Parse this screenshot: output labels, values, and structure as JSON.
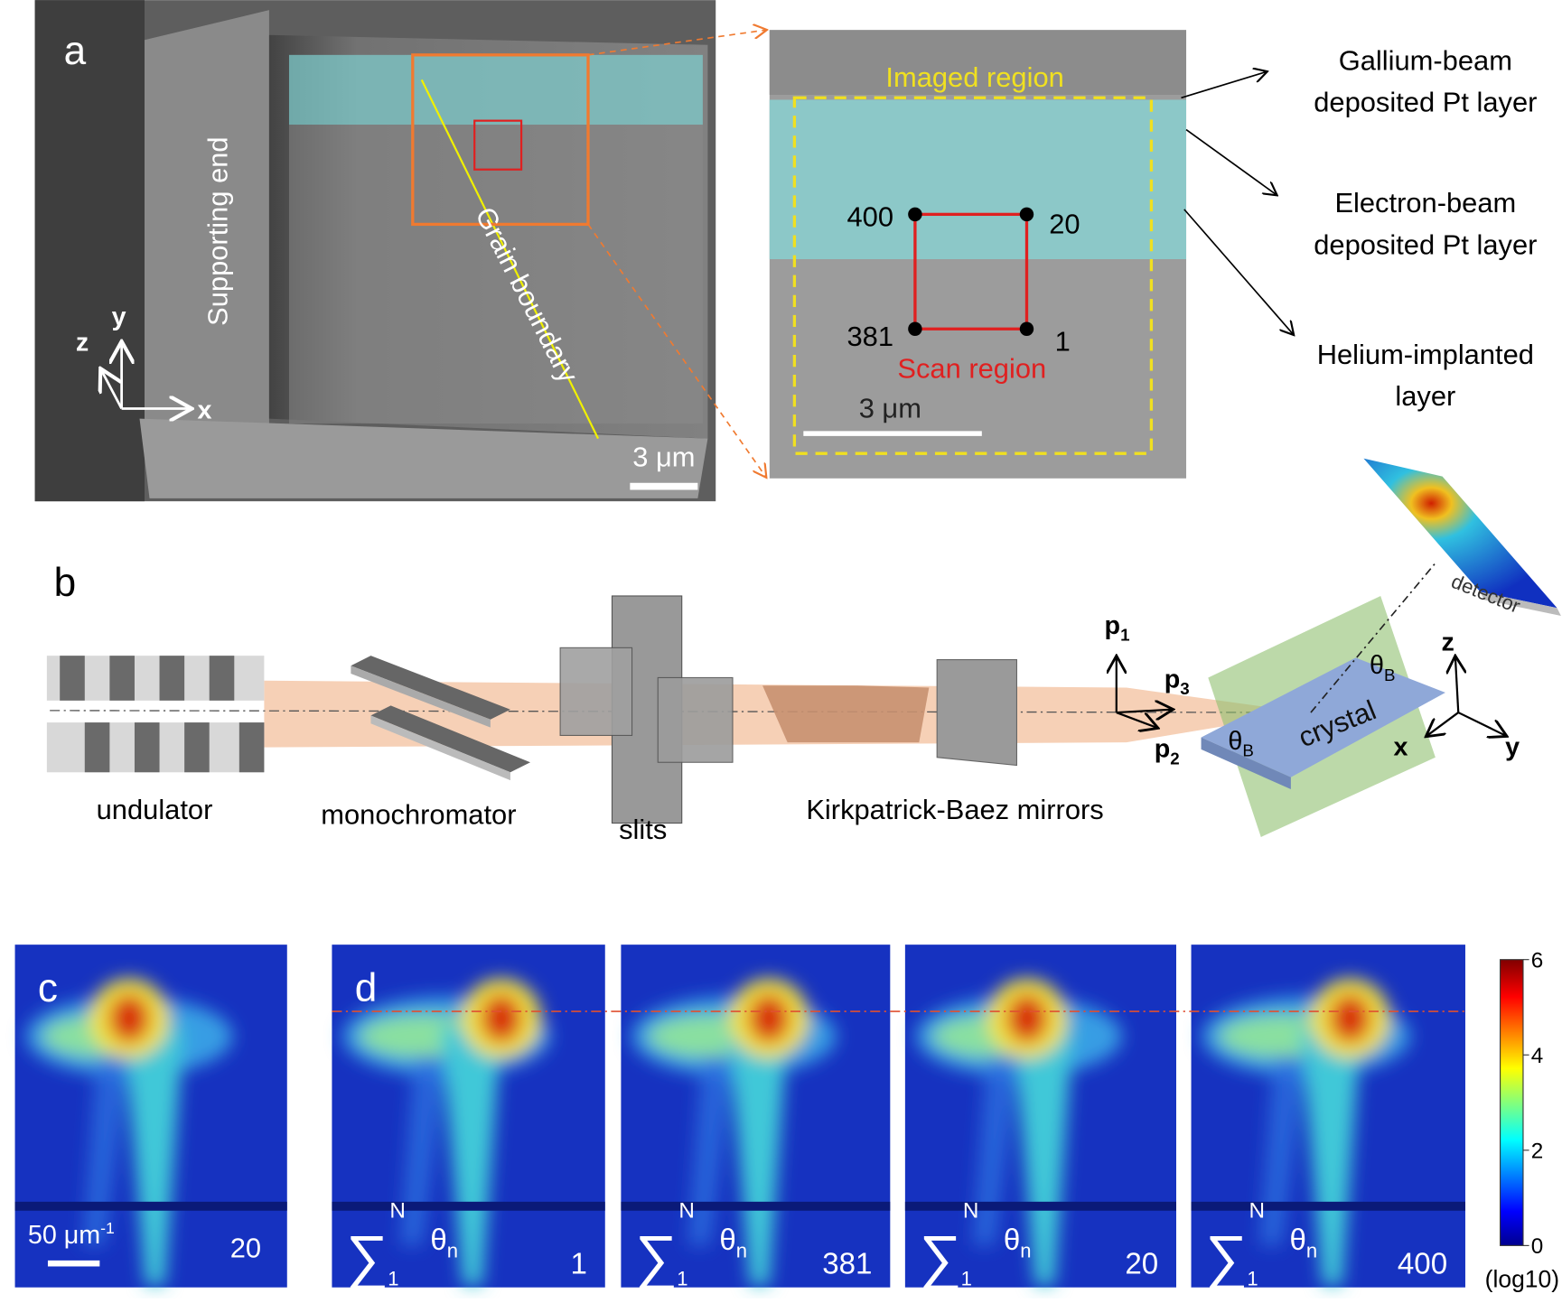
{
  "panel_a": {
    "label": "a",
    "supporting_end": "Supporting end",
    "grain_boundary": "Grain boundary",
    "scale_bar": "3 μm",
    "axes": {
      "z": "z",
      "y": "y",
      "x": "x"
    }
  },
  "panel_a_zoom": {
    "imaged_region": "Imaged region",
    "scan_region": "Scan region",
    "corners": {
      "top_left": "400",
      "top_right": "20",
      "bottom_left": "381",
      "bottom_right": "1"
    },
    "scale_bar": "3 μm"
  },
  "layers": [
    [
      "Gallium-beam",
      "deposited Pt layer"
    ],
    [
      "Electron-beam",
      "deposited Pt layer"
    ],
    [
      "Helium-implanted",
      "layer"
    ]
  ],
  "panel_b": {
    "label": "b",
    "components": [
      "undulator",
      "monochromator",
      "slits",
      "Kirkpatrick-Baez mirrors"
    ],
    "detector": "detector",
    "crystal": "crystal",
    "theta_b": {
      "symbol": "θ",
      "sub": "B"
    },
    "momentum": [
      {
        "symbol": "p",
        "sub": "1"
      },
      {
        "symbol": "p",
        "sub": "2"
      },
      {
        "symbol": "p",
        "sub": "3"
      }
    ],
    "axes": {
      "z": "z",
      "x": "x",
      "y": "y"
    }
  },
  "panel_c": {
    "label": "c",
    "scale_bar": {
      "text": "50 μm",
      "sup": "-1"
    },
    "position": "20"
  },
  "panel_d": {
    "label": "d",
    "sum_label": {
      "symbol": "∑",
      "lower": "1",
      "upper": "N",
      "var": "θ",
      "var_sub": "n"
    },
    "positions": [
      "1",
      "381",
      "20",
      "400"
    ]
  },
  "colorbar": {
    "clim": [
      0,
      6
    ],
    "ticks": [
      0,
      2,
      4,
      6
    ],
    "unit": "(log10)"
  }
}
